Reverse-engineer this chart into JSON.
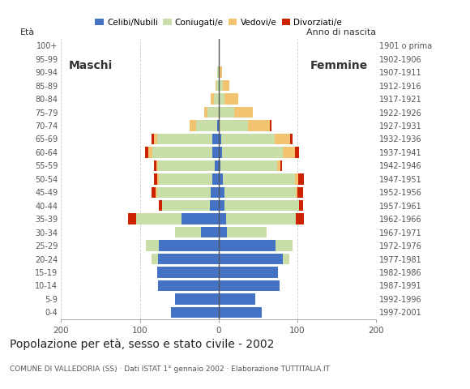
{
  "age_groups": [
    "0-4",
    "5-9",
    "10-14",
    "15-19",
    "20-24",
    "25-29",
    "30-34",
    "35-39",
    "40-44",
    "45-49",
    "50-54",
    "55-59",
    "60-64",
    "65-69",
    "70-74",
    "75-79",
    "80-84",
    "85-89",
    "90-94",
    "95-99",
    "100+"
  ],
  "birth_years": [
    "1997-2001",
    "1992-1996",
    "1987-1991",
    "1982-1986",
    "1977-1981",
    "1972-1976",
    "1967-1971",
    "1962-1966",
    "1957-1961",
    "1952-1956",
    "1947-1951",
    "1942-1946",
    "1937-1941",
    "1932-1936",
    "1927-1931",
    "1922-1926",
    "1917-1921",
    "1912-1916",
    "1907-1911",
    "1902-1906",
    "1901 o prima"
  ],
  "male": {
    "celibi": [
      60,
      55,
      77,
      78,
      77,
      76,
      22,
      47,
      11,
      10,
      8,
      5,
      8,
      8,
      2,
      0,
      0,
      0,
      0,
      0,
      0
    ],
    "coniugati": [
      0,
      0,
      0,
      0,
      8,
      16,
      33,
      58,
      61,
      68,
      68,
      72,
      76,
      70,
      26,
      14,
      6,
      3,
      2,
      0,
      0
    ],
    "vedovi": [
      0,
      0,
      0,
      0,
      0,
      0,
      0,
      0,
      0,
      2,
      2,
      2,
      5,
      4,
      9,
      4,
      4,
      1,
      0,
      0,
      0
    ],
    "divorziati": [
      0,
      0,
      0,
      0,
      0,
      0,
      0,
      10,
      4,
      5,
      4,
      3,
      4,
      3,
      0,
      0,
      0,
      0,
      0,
      0,
      0
    ]
  },
  "female": {
    "nubili": [
      55,
      47,
      77,
      75,
      82,
      72,
      11,
      10,
      7,
      8,
      5,
      2,
      4,
      3,
      0,
      0,
      0,
      0,
      0,
      0,
      0
    ],
    "coniugate": [
      0,
      0,
      0,
      0,
      8,
      22,
      50,
      88,
      95,
      90,
      92,
      72,
      78,
      68,
      37,
      20,
      8,
      5,
      1,
      0,
      0
    ],
    "vedove": [
      0,
      0,
      0,
      0,
      0,
      0,
      0,
      0,
      0,
      2,
      4,
      5,
      15,
      20,
      28,
      24,
      17,
      9,
      3,
      1,
      0
    ],
    "divorziate": [
      0,
      0,
      0,
      0,
      0,
      0,
      0,
      10,
      5,
      7,
      7,
      2,
      5,
      3,
      2,
      0,
      0,
      0,
      0,
      0,
      0
    ]
  },
  "colors": {
    "celibi": "#4472C4",
    "coniugati": "#c8dda8",
    "vedovi": "#f2c472",
    "divorziati": "#cc2200"
  },
  "xlim": 200,
  "title": "Popolazione per età, sesso e stato civile - 2002",
  "subtitle": "COMUNE DI VALLEDORIA (SS) · Dati ISTAT 1° gennaio 2002 · Elaborazione TUTTITALIA.IT",
  "ylabel_left": "Età",
  "ylabel_right": "Anno di nascita",
  "label_maschi": "Maschi",
  "label_femmine": "Femmine",
  "legend_labels": [
    "Celibi/Nubili",
    "Coniugati/e",
    "Vedovi/e",
    "Divorziati/e"
  ]
}
